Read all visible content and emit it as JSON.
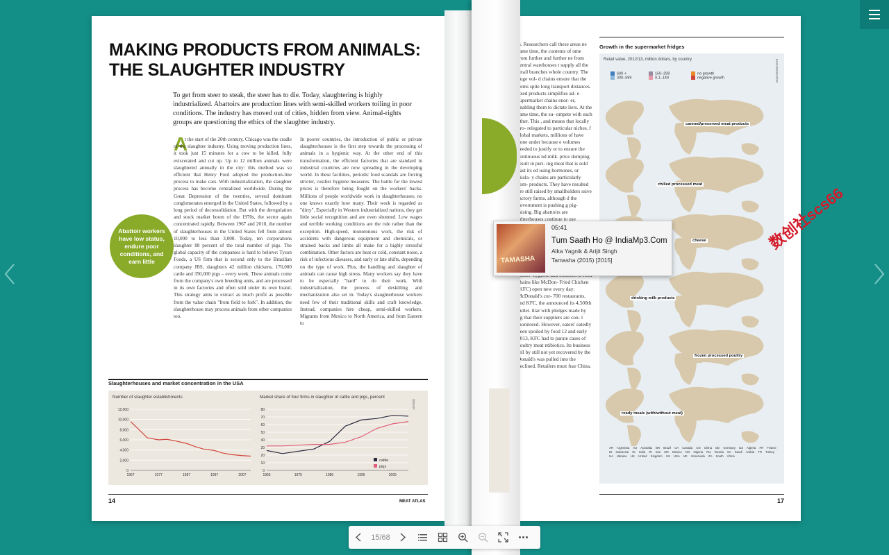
{
  "left_page": {
    "title_line1": "MAKING PRODUCTS FROM ANIMALS:",
    "title_line2": "THE SLAUGHTER INDUSTRY",
    "intro": "To get from steer to steak, the steer has to die. Today, slaughtering is highly industrialized. Abattoirs are production lines with semi-skilled workers toiling in poor conditions. The industry has moved out of cities, hidden from view. Animal-rights groups are questioning the ethics of the slaughter industry.",
    "drop_cap": "A",
    "col1": "t the start of the 20th century, Chicago was the cradle of the slaughter industry. Using moving production lines, it took just 15 minutes for a cow to be killed, fully eviscerated and cut up. Up to 12 million animals were slaughtered annually in the city: this method was so efficient that Henry Ford adopted the production-line process to make cars. With industrialization, the slaughter process has become centralized worldwide. During the Great Depression of the twenties, several dominant conglomerates emerged in the United States, followed by a long period of deconsolidation. But with the deregulation and stock market boom of the 1970s, the sector again concentrated rapidly. Between 1967 and 2010, the number of slaughterhouses in the United States fell from almost 10,000 to less than 3,000. Today, ten corporations slaughter 88 percent of the total number of pigs. The global capacity of the companies is hard to believe: Tyson Foods, a US firm that is second only to the Brazilian company JBS, slaughters 42 million chickens, 170,000 cattle and 350,000 pigs – every week. These animals come from the company's own breeding units, and are processed in its own factories and often sold under its own brand. This strategy aims to extract as much profit as possible from the value chain \"from field to fork\". In addition, the slaughterhouse may process animals from other companies too.",
    "col2": "In poorer countries, the introduction of public or private slaughterhouses is the first step towards the processing of animals in a hygienic way. At the other end of this transformation, the efficient factories that are standard in industrial countries are now spreading in the developing world. In these facilities, periodic food scandals are forcing stricter, costlier hygiene measures. The battle for the lowest prices is therefore being fought on the workers' backs. Millions of people worldwide work in slaughterhouses; no one knows exactly how many. Their work is regarded as \"dirty\". Especially in Western industrialized nations, they get little social recognition and are even shunned. Low wages and terrible working conditions are the rule rather than the exception. High-speed, monotonous work, the risk of accidents with dangerous equipment and chemicals, or strained backs and limbs all make for a highly stressful combination. Other factors are heat or cold, constant noise, a risk of infectious diseases, and early or late shifts, depending on the type of work. Plus, the handling and slaughter of animals can cause high stress. Many workers say they have to be especially \"hard\" to do their work. With industrialization, the process of deskilling and mechanization also set in. Today's slaughterhouse workers need few of their traditional skills and craft knowledge. Instead, companies hire cheap, semi-skilled workers. Migrants from Mexico to North America, and from Eastern to",
    "badge": "Abattoir workers have low status, endure poor conditions, and earn little",
    "chart_section_title": "Slaughterhouses and market concentration in the USA",
    "chart1_label": "Number of slaughter establishments",
    "chart2_label": "Market share of four firms in slaughter of cattle and pigs, percent",
    "source": "DENNY",
    "page_number": "14",
    "footer": "MEAT ATLAS"
  },
  "chart_data": [
    {
      "type": "line",
      "title": "Number of slaughter establishments",
      "x": [
        1967,
        1970,
        1973,
        1977,
        1980,
        1983,
        1987,
        1990,
        1993,
        1997,
        2000,
        2003,
        2007,
        2010
      ],
      "series": [
        {
          "name": "",
          "values": [
            9600,
            8000,
            6400,
            6000,
            6100,
            5800,
            5300,
            4700,
            4200,
            3900,
            3400,
            3100,
            2900,
            2800
          ]
        }
      ],
      "ylim": [
        0,
        12000
      ],
      "yticks": [
        "12,000",
        "10,000",
        "8,000",
        "6,000",
        "4,000",
        "2,000",
        "0"
      ],
      "xticks": [
        "1967",
        "1977",
        "1987",
        "1997",
        "2007"
      ],
      "color": "#d0453a"
    },
    {
      "type": "line",
      "title": "Market share of four firms in slaughter of cattle and pigs, percent",
      "x": [
        1965,
        1970,
        1975,
        1980,
        1985,
        1990,
        1995,
        2000,
        2005,
        2010
      ],
      "series": [
        {
          "name": "cattle",
          "values": [
            26,
            22,
            25,
            28,
            38,
            58,
            66,
            68,
            72,
            71
          ],
          "color": "#2a2a40"
        },
        {
          "name": "pigs",
          "values": [
            32,
            32,
            33,
            34,
            34,
            37,
            44,
            55,
            61,
            64
          ],
          "color": "#e05d7b"
        }
      ],
      "ylim": [
        0,
        80
      ],
      "yticks": [
        "80",
        "70",
        "60",
        "50",
        "40",
        "30",
        "20",
        "10",
        "0"
      ],
      "xticks": [
        "1965",
        "1975",
        "1985",
        "1995",
        "2005"
      ]
    }
  ],
  "right_page": {
    "text": "ts. Researchers call these areas ne same time, the contents of ome from further and further ne from central warehouses t supply all the retail branches whole country. The huge vol- d chains ensure that the items spite long transport distances. lized products simplifies ad- e supermarket chains enor- er, enabling them to dictate liers. At the same time, the su- ompete with each other. This , and means that locally pro- relegated to particular niches. f global markets, millions of have gone under because e volumes needed to justify or to ensure the continuous nd milk. price dumping result in peri- ing meat that is sold past its ed using hormones, or misla- y chains are particularly com- products. They have resulted ere still raised by smallholders ssive factory farms, although d the government is pushing g pig-raising. Big abattoirs are ighterhouses continue to use mechanical methods, and hy- seldom checked. Many places old chain, so most meat is sold y cooked. But the demand for arkets is growing, and it now cent of total meat sales. Such s \"Western\" and are growing se they are cheap and associ- hygiene and comfort. st food chains like McDon- Fried Chicken (KFC) open new every day: McDonald's cur- 700 restaurants, and KFC, the announced its 4,500th outlet. iliar with pledges made by ng that their suppliers are con- l monitored. However, eaters' eatedly been spoiled by food 12 and early 2013, KFC had to parate cases of poultry meat ntibiotics. Its business fell by still not yet recovered by the Donald's was pulled into the declined. Retailers must fear China.",
    "map_title": "Growth in the supermarket fridges",
    "map_subtitle": "Retail value, 2012/13, million dollars, by country",
    "legend": [
      "600 +",
      "300–599",
      "150–299",
      "0.1–149",
      "no growth",
      "negative growth"
    ],
    "legend_colors": [
      "#3f7fbf",
      "#8fb7d9",
      "#9a8aa0",
      "#e59aa8",
      "#e8892b",
      "#d0453a"
    ],
    "categories": [
      "canned/preserved meat products",
      "chilled processed meat",
      "cheese",
      "drinking milk products",
      "frozen processed poultry",
      "ready meals (with/without meat)"
    ],
    "country_codes": "AR Argentina AU Australia BR Brazil CA Canada CN China DE Germany DZ Algeria FR France ID Indonesia IN India IR Iran MX Mexico NG Nigeria RU Russia SA Saudi Arabia TR Turkey UA Ukraine UK United Kingdom US USA VE Venezuela ZA South Africa",
    "source": "EUROMONITOR",
    "page_number": "17"
  },
  "popup": {
    "time": "05:41",
    "title": "Tum Saath Ho @ IndiaMp3.Com",
    "artist": "Alka Yagnik & Arijit Singh",
    "album": "Tamasha (2015) [2015]",
    "art_text": "TAMASHA"
  },
  "watermark": "数创社scs66",
  "toolbar": {
    "page_indicator": "15/68"
  }
}
